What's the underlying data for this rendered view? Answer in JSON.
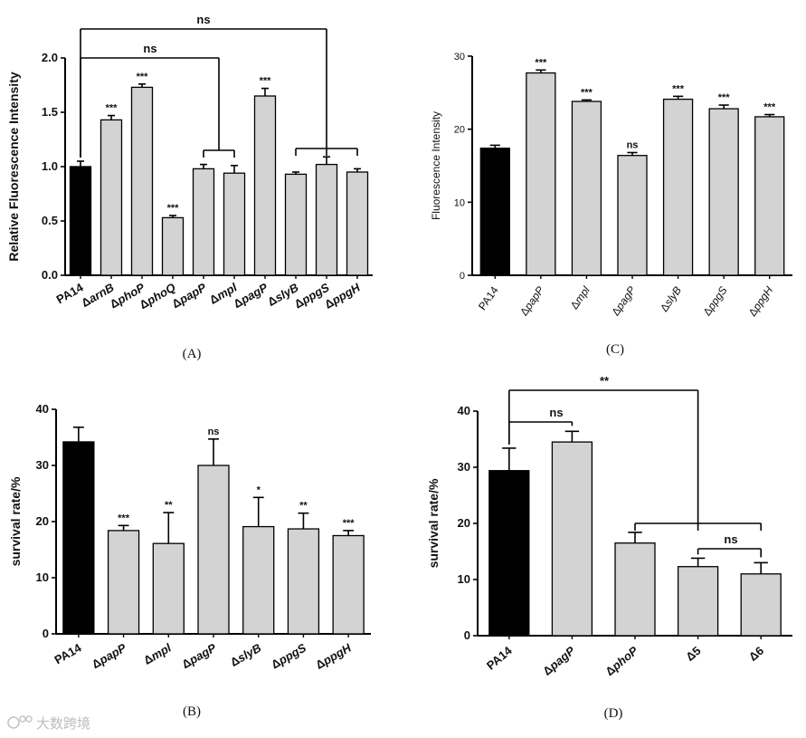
{
  "watermark": {
    "text": "大数跨境",
    "color": "#bdbdbd"
  },
  "colors": {
    "control": "#000000",
    "mutant": "#d3d3d3",
    "stroke": "#000000"
  },
  "chart_data": [
    {
      "panel": "(A)",
      "type": "bar",
      "title": "",
      "xlabel": "",
      "ylabel": "Relative Fluorescence Intensity",
      "ylim": [
        0,
        2.0
      ],
      "yticks": [
        "0.0",
        "0.5",
        "1.0",
        "1.5",
        "2.0"
      ],
      "categories": [
        {
          "pre": "",
          "it": "",
          "text": "PA14"
        },
        {
          "pre": "Δ",
          "it": "arnB",
          "text": "ΔarnB"
        },
        {
          "pre": "Δ",
          "it": "phoP",
          "text": "ΔphoP"
        },
        {
          "pre": "Δ",
          "it": "phoQ",
          "text": "ΔphoQ"
        },
        {
          "pre": "Δ",
          "it": "papP",
          "text": "ΔpapP"
        },
        {
          "pre": "Δ",
          "it": "mpl",
          "text": "Δmpl"
        },
        {
          "pre": "Δ",
          "it": "pagP",
          "text": "ΔpagP"
        },
        {
          "pre": "Δ",
          "it": "slyB",
          "text": "ΔslyB"
        },
        {
          "pre": "Δ",
          "it": "ppgS",
          "text": "ΔppgS"
        },
        {
          "pre": "Δ",
          "it": "ppgH",
          "text": "ΔppgH"
        }
      ],
      "values": [
        1.0,
        1.43,
        1.73,
        0.53,
        0.98,
        0.94,
        1.65,
        0.93,
        1.02,
        0.95
      ],
      "errors": [
        0.05,
        0.04,
        0.03,
        0.02,
        0.04,
        0.07,
        0.07,
        0.02,
        0.07,
        0.03
      ],
      "significance": [
        "",
        "***",
        "***",
        "***",
        "",
        "",
        "***",
        "",
        "",
        ""
      ],
      "comparisons": [
        {
          "label": "ns",
          "from": 0,
          "to": [
            4,
            5
          ]
        },
        {
          "label": "ns",
          "from": 0,
          "to": [
            7,
            8,
            9
          ]
        }
      ]
    },
    {
      "panel": "(B)",
      "type": "bar",
      "title": "",
      "xlabel": "",
      "ylabel": "survival rate/%",
      "ylim": [
        0,
        40
      ],
      "yticks": [
        "0",
        "10",
        "20",
        "30",
        "40"
      ],
      "categories": [
        {
          "pre": "",
          "it": "",
          "text": "PA14"
        },
        {
          "pre": "Δ",
          "it": "papP",
          "text": "ΔpapP"
        },
        {
          "pre": "Δ",
          "it": "mpl",
          "text": "Δmpl"
        },
        {
          "pre": "Δ",
          "it": "pagP",
          "text": "ΔpagP"
        },
        {
          "pre": "Δ",
          "it": "slyB",
          "text": "ΔslyB"
        },
        {
          "pre": "Δ",
          "it": "ppgS",
          "text": "ΔppgS"
        },
        {
          "pre": "Δ",
          "it": "ppgH",
          "text": "ΔppgH"
        }
      ],
      "values": [
        34.2,
        18.4,
        16.1,
        30.0,
        19.1,
        18.7,
        17.5
      ],
      "errors": [
        2.6,
        0.9,
        5.5,
        4.7,
        5.2,
        2.8,
        0.9
      ],
      "significance": [
        "",
        "***",
        "**",
        "ns",
        "*",
        "**",
        "***"
      ],
      "comparisons": []
    },
    {
      "panel": "(C)",
      "type": "bar",
      "title": "",
      "xlabel": "",
      "ylabel": "Fluorescence Intensity",
      "ylim": [
        0,
        30
      ],
      "yticks": [
        "0",
        "10",
        "20",
        "30"
      ],
      "categories": [
        {
          "pre": "",
          "it": "",
          "text": "PA14"
        },
        {
          "pre": "Δ",
          "it": "papP",
          "text": "ΔpapP"
        },
        {
          "pre": "Δ",
          "it": "mpl",
          "text": "Δmpl"
        },
        {
          "pre": "Δ",
          "it": "pagP",
          "text": "ΔpagP"
        },
        {
          "pre": "Δ",
          "it": "slyB",
          "text": "ΔslyB"
        },
        {
          "pre": "Δ",
          "it": "ppgS",
          "text": "ΔppgS"
        },
        {
          "pre": "Δ",
          "it": "ppgH",
          "text": "ΔppgH"
        }
      ],
      "values": [
        17.4,
        27.7,
        23.8,
        16.4,
        24.1,
        22.8,
        21.7
      ],
      "errors": [
        0.4,
        0.4,
        0.2,
        0.4,
        0.4,
        0.5,
        0.3
      ],
      "significance": [
        "",
        "***",
        "***",
        "ns",
        "***",
        "***",
        "***"
      ],
      "comparisons": []
    },
    {
      "panel": "(D)",
      "type": "bar",
      "title": "",
      "xlabel": "",
      "ylabel": "survival rate/%",
      "ylim": [
        0,
        40
      ],
      "yticks": [
        "0",
        "10",
        "20",
        "30",
        "40"
      ],
      "categories": [
        {
          "pre": "",
          "it": "",
          "text": "PA14"
        },
        {
          "pre": "Δ",
          "it": "pagP",
          "text": "ΔpagP"
        },
        {
          "pre": "Δ",
          "it": "phoP",
          "text": "ΔphoP"
        },
        {
          "pre": "Δ",
          "it": "",
          "num": "5",
          "text": "Δ5"
        },
        {
          "pre": "Δ",
          "it": "",
          "num": "6",
          "text": "Δ6"
        }
      ],
      "values": [
        29.4,
        34.5,
        16.5,
        12.3,
        11.0
      ],
      "errors": [
        4.0,
        1.9,
        1.9,
        1.5,
        2.0
      ],
      "significance": [
        "",
        "",
        "",
        "",
        ""
      ],
      "comparisons": [
        {
          "label": "ns",
          "from": 0,
          "to": [
            1
          ]
        },
        {
          "label": "**",
          "from": 0,
          "to": [
            2,
            3,
            4
          ]
        },
        {
          "label": "ns",
          "from": 3,
          "to": [
            4
          ]
        }
      ]
    }
  ]
}
